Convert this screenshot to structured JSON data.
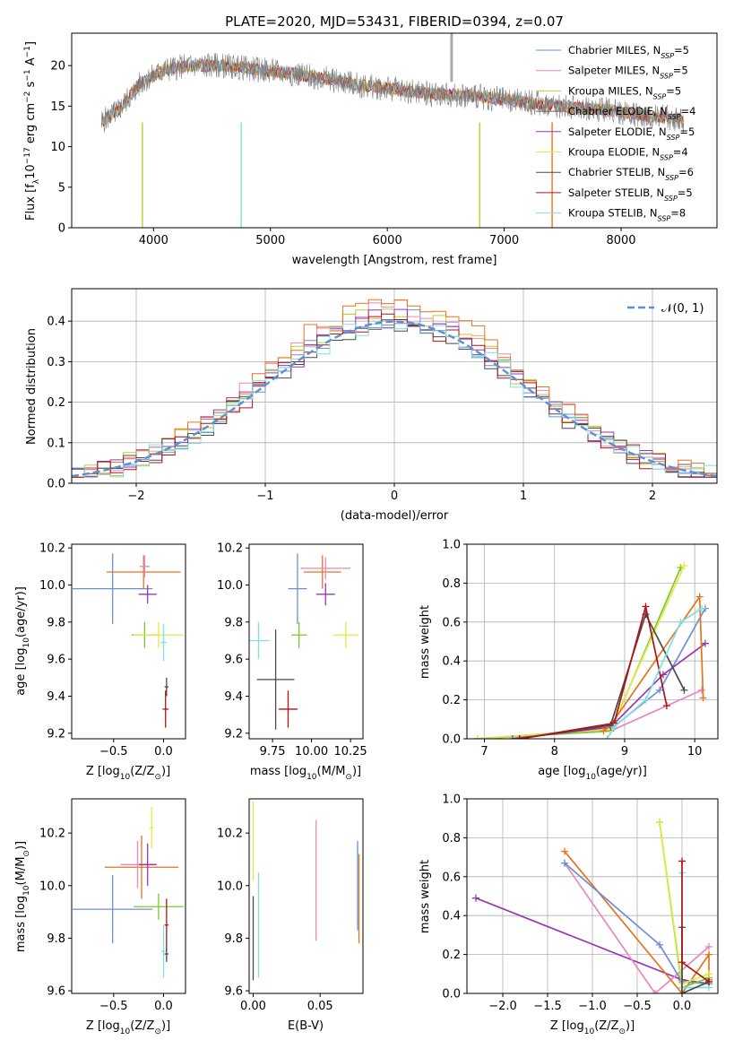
{
  "title": "PLATE=2020, MJD=53431, FIBERID=0394, z=0.07",
  "colors": {
    "Chabrier MILES": "#6b8fd6",
    "Salpeter MILES": "#e986c0",
    "Kroupa MILES": "#b9cf2e",
    "Chabrier ELODIE": "#606060",
    "Salpeter ELODIE": "#9a36b3",
    "Kroupa ELODIE": "#e3ea40",
    "Chabrier STELIB": "#4a4a4a",
    "Salpeter STELIB": "#b01414",
    "Kroupa STELIB": "#7fe0de",
    "orange": "#e6731d",
    "green": "#7bc82c",
    "gauss": "#5b8fd6",
    "data_gray": "#808080"
  },
  "chart_data": [
    {
      "id": "spectrum",
      "type": "line",
      "xlabel": "wavelength [Angstrom, rest frame]",
      "ylabel_main": "Flux [f",
      "ylabel_sub": "λ",
      "ylabel_rest": "10",
      "ylabel_exp1": "−17",
      "ylabel_tail": " erg cm",
      "ylabel_exp2": "−2",
      "ylabel_s": " s",
      "ylabel_exp3": "−1",
      "ylabel_end": " A",
      "ylabel_exp4": "−1",
      "ylabel_close": "]",
      "xlim": [
        3300,
        8820
      ],
      "ylim": [
        0,
        24
      ],
      "xticks": [
        4000,
        5000,
        6000,
        7000,
        8000
      ],
      "yticks": [
        0,
        5,
        10,
        15,
        20
      ],
      "continuum": [
        [
          3550,
          13
        ],
        [
          3700,
          14.5
        ],
        [
          3900,
          18
        ],
        [
          4100,
          19.5
        ],
        [
          4300,
          20
        ],
        [
          4600,
          20
        ],
        [
          4900,
          19.5
        ],
        [
          5200,
          19
        ],
        [
          5500,
          18.3
        ],
        [
          5800,
          17.5
        ],
        [
          6100,
          17
        ],
        [
          6400,
          16.5
        ],
        [
          6700,
          16.3
        ],
        [
          7000,
          15.8
        ],
        [
          7300,
          15.3
        ],
        [
          7600,
          14.8
        ],
        [
          7900,
          14.5
        ],
        [
          8200,
          13.8
        ],
        [
          8500,
          13.5
        ],
        [
          8550,
          13
        ]
      ],
      "legend": [
        {
          "label": "Chabrier MILES, N",
          "sub": "SSP",
          "val": "=5"
        },
        {
          "label": "Salpeter MILES, N",
          "sub": "SSP",
          "val": "=5"
        },
        {
          "label": "Kroupa MILES, N",
          "sub": "SSP",
          "val": "=5"
        },
        {
          "label": "Chabrier ELODIE, N",
          "sub": "SSP",
          "val": "=4"
        },
        {
          "label": "Salpeter ELODIE, N",
          "sub": "SSP",
          "val": "=5"
        },
        {
          "label": "Kroupa ELODIE, N",
          "sub": "SSP",
          "val": "=4"
        },
        {
          "label": "Chabrier STELIB, N",
          "sub": "SSP",
          "val": "=6"
        },
        {
          "label": "Salpeter STELIB, N",
          "sub": "SSP",
          "val": "=5"
        },
        {
          "label": "Kroupa STELIB, N",
          "sub": "SSP",
          "val": "=8"
        }
      ]
    },
    {
      "id": "residuals",
      "type": "step-histogram",
      "xlabel": "(data-model)/error",
      "ylabel": "Normed distribution",
      "xlim": [
        -2.5,
        2.5
      ],
      "ylim": [
        0,
        0.48
      ],
      "xticks": [
        -2,
        -1,
        0,
        1,
        2
      ],
      "xticklabels": [
        "−2",
        "−1",
        "0",
        "1",
        "2"
      ],
      "yticks": [
        0.0,
        0.1,
        0.2,
        0.3,
        0.4
      ],
      "yticklabels": [
        "0.0",
        "0.1",
        "0.2",
        "0.3",
        "0.4"
      ],
      "legend_label": "𝒩(0, 1)",
      "series_hist": [
        {
          "name": "Chabrier MILES",
          "peak": 0.41
        },
        {
          "name": "Salpeter MILES",
          "peak": 0.44
        },
        {
          "name": "Kroupa MILES",
          "peak": 0.42
        },
        {
          "name": "Salpeter ELODIE",
          "peak": 0.41
        },
        {
          "name": "orange",
          "peak": 0.455
        },
        {
          "name": "Chabrier STELIB",
          "peak": 0.4
        },
        {
          "name": "Salpeter STELIB",
          "peak": 0.4
        },
        {
          "name": "Kroupa STELIB",
          "peak": 0.4
        }
      ]
    },
    {
      "id": "age_vs_Z",
      "type": "errorbar",
      "xlabel": "Z [log",
      "xlabel_sub": "10",
      "xlabel_rest": "(Z/Z",
      "xlabel_sun": "⊙",
      "xlabel_end": ")]",
      "ylabel": "age  [log",
      "ylabel_sub": "10",
      "ylabel_rest": "(age/yr)]",
      "xlim": [
        -0.92,
        0.22
      ],
      "ylim": [
        9.17,
        10.22
      ],
      "xticks": [
        -0.5,
        0.0
      ],
      "xticklabels": [
        "−0.5",
        "0.0"
      ],
      "yticks": [
        9.2,
        9.4,
        9.6,
        9.8,
        10.0,
        10.2
      ],
      "yticklabels": [
        "9.2",
        "9.4",
        "9.6",
        "9.8",
        "10.0",
        "10.2"
      ],
      "points": [
        {
          "c": "Chabrier MILES",
          "x": -0.51,
          "y": 9.98,
          "xe": 0.4,
          "ye": 0.19
        },
        {
          "c": "orange",
          "x": -0.2,
          "y": 10.07,
          "xe": 0.37,
          "ye": 0.09
        },
        {
          "c": "Salpeter MILES",
          "x": -0.19,
          "y": 10.1,
          "xe": 0.05,
          "ye": 0.06
        },
        {
          "c": "Salpeter ELODIE",
          "x": -0.16,
          "y": 9.95,
          "xe": 0.09,
          "ye": 0.05
        },
        {
          "c": "green",
          "x": -0.19,
          "y": 9.73,
          "xe": 0.13,
          "ye": 0.07
        },
        {
          "c": "Kroupa ELODIE",
          "x": -0.05,
          "y": 9.73,
          "xe": 0.25,
          "ye": 0.07
        },
        {
          "c": "Kroupa STELIB",
          "x": 0.0,
          "y": 9.69,
          "xe": 0.03,
          "ye": 0.1
        },
        {
          "c": "Chabrier STELIB",
          "x": 0.03,
          "y": 9.45,
          "xe": 0.02,
          "ye": 0.05
        },
        {
          "c": "Salpeter STELIB",
          "x": 0.02,
          "y": 9.33,
          "xe": 0.03,
          "ye": 0.1
        }
      ]
    },
    {
      "id": "age_vs_mass",
      "type": "errorbar",
      "xlabel": "mass [log",
      "xlabel_sub": "10",
      "xlabel_rest": "(M/M",
      "xlabel_sun": "⊙",
      "xlabel_end": ")]",
      "xlim": [
        9.6,
        10.33
      ],
      "ylim": [
        9.17,
        10.22
      ],
      "xticks": [
        9.75,
        10.0,
        10.25
      ],
      "xticklabels": [
        "9.75",
        "10.00",
        "10.25"
      ],
      "yticks": [
        9.2,
        9.4,
        9.6,
        9.8,
        10.0,
        10.2
      ],
      "yticklabels": [
        "9.2",
        "9.4",
        "9.6",
        "9.8",
        "10.0",
        "10.2"
      ],
      "points": [
        {
          "c": "Chabrier MILES",
          "x": 9.91,
          "y": 9.98,
          "xe": 0.06,
          "ye": 0.19
        },
        {
          "c": "orange",
          "x": 10.07,
          "y": 10.07,
          "xe": 0.12,
          "ye": 0.09
        },
        {
          "c": "Salpeter MILES",
          "x": 10.09,
          "y": 10.09,
          "xe": 0.16,
          "ye": 0.06
        },
        {
          "c": "Salpeter ELODIE",
          "x": 10.09,
          "y": 9.95,
          "xe": 0.06,
          "ye": 0.06
        },
        {
          "c": "green",
          "x": 9.92,
          "y": 9.73,
          "xe": 0.05,
          "ye": 0.07
        },
        {
          "c": "Kroupa ELODIE",
          "x": 10.22,
          "y": 9.73,
          "xe": 0.08,
          "ye": 0.07
        },
        {
          "c": "Kroupa STELIB",
          "x": 9.66,
          "y": 9.7,
          "xe": 0.07,
          "ye": 0.1
        },
        {
          "c": "Chabrier STELIB",
          "x": 9.77,
          "y": 9.49,
          "xe": 0.12,
          "ye": 0.27
        },
        {
          "c": "Salpeter STELIB",
          "x": 9.85,
          "y": 9.33,
          "xe": 0.06,
          "ye": 0.1
        }
      ]
    },
    {
      "id": "weight_vs_age",
      "type": "line",
      "xlabel": "age  [log",
      "xlabel_sub": "10",
      "xlabel_rest": "(age/yr)]",
      "ylabel": "mass weight",
      "xlim": [
        6.75,
        10.33
      ],
      "ylim": [
        0,
        1.0
      ],
      "xticks": [
        7,
        8,
        9,
        10
      ],
      "xticklabels": [
        "7",
        "8",
        "9",
        "10"
      ],
      "yticks": [
        0.0,
        0.2,
        0.4,
        0.6,
        0.8,
        1.0
      ],
      "yticklabels": [
        "0.0",
        "0.2",
        "0.4",
        "0.6",
        "0.8",
        "1.0"
      ],
      "series": [
        {
          "c": "Chabrier MILES",
          "x": [
            6.9,
            8.8,
            9.5,
            10.15
          ],
          "y": [
            0.0,
            0.05,
            0.25,
            0.67
          ]
        },
        {
          "c": "Salpeter MILES",
          "x": [
            6.9,
            8.8,
            10.1
          ],
          "y": [
            0.0,
            0.04,
            0.25
          ]
        },
        {
          "c": "green",
          "x": [
            6.9,
            8.8,
            9.8
          ],
          "y": [
            0.0,
            0.04,
            0.88
          ]
        },
        {
          "c": "Kroupa ELODIE",
          "x": [
            6.9,
            8.8,
            9.85
          ],
          "y": [
            0.0,
            0.05,
            0.89
          ]
        },
        {
          "c": "Salpeter ELODIE",
          "x": [
            7.4,
            8.8,
            9.55,
            10.15
          ],
          "y": [
            0.0,
            0.06,
            0.33,
            0.49
          ]
        },
        {
          "c": "orange",
          "x": [
            8.7,
            8.8,
            10.07,
            10.12
          ],
          "y": [
            0.04,
            0.07,
            0.73,
            0.21
          ]
        },
        {
          "c": "Chabrier STELIB",
          "x": [
            7.5,
            8.8,
            9.3,
            9.85
          ],
          "y": [
            0.0,
            0.07,
            0.64,
            0.25
          ]
        },
        {
          "c": "Salpeter STELIB",
          "x": [
            7.5,
            8.85,
            9.3,
            9.6
          ],
          "y": [
            0.0,
            0.08,
            0.68,
            0.17
          ]
        },
        {
          "c": "Kroupa STELIB",
          "x": [
            8.75,
            8.85,
            9.3,
            9.8,
            10.1
          ],
          "y": [
            0.0,
            0.06,
            0.2,
            0.6,
            0.67
          ]
        }
      ]
    },
    {
      "id": "mass_vs_Z",
      "type": "errorbar",
      "xlabel": "Z [log",
      "xlabel_sub": "10",
      "xlabel_rest": "(Z/Z",
      "xlabel_sun": "⊙",
      "xlabel_end": ")]",
      "ylabel": "mass [log",
      "ylabel_sub": "10",
      "ylabel_rest": "(M/M",
      "ylabel_sun": "⊙",
      "ylabel_end": ")]",
      "xlim": [
        -0.92,
        0.22
      ],
      "ylim": [
        9.59,
        10.33
      ],
      "xticks": [
        -0.5,
        0.0
      ],
      "xticklabels": [
        "−0.5",
        "0.0"
      ],
      "yticks": [
        9.6,
        9.8,
        10.0,
        10.2
      ],
      "yticklabels": [
        "9.6",
        "9.8",
        "10.0",
        "10.2"
      ],
      "points": [
        {
          "c": "Chabrier MILES",
          "x": -0.51,
          "y": 9.91,
          "xe": 0.4,
          "ye": 0.13
        },
        {
          "c": "orange",
          "x": -0.22,
          "y": 10.07,
          "xe": 0.37,
          "ye": 0.12
        },
        {
          "c": "Salpeter MILES",
          "x": -0.26,
          "y": 10.08,
          "xe": 0.17,
          "ye": 0.09
        },
        {
          "c": "Salpeter ELODIE",
          "x": -0.16,
          "y": 10.08,
          "xe": 0.09,
          "ye": 0.08
        },
        {
          "c": "Kroupa ELODIE",
          "x": -0.12,
          "y": 10.22,
          "xe": 0.02,
          "ye": 0.08
        },
        {
          "c": "green",
          "x": -0.05,
          "y": 9.92,
          "xe": 0.25,
          "ye": 0.05
        },
        {
          "c": "Kroupa STELIB",
          "x": 0.0,
          "y": 9.75,
          "xe": 0.02,
          "ye": 0.1
        },
        {
          "c": "Salpeter STELIB",
          "x": 0.03,
          "y": 9.85,
          "xe": 0.02,
          "ye": 0.1
        },
        {
          "c": "Chabrier STELIB",
          "x": 0.03,
          "y": 9.74,
          "xe": 0.02,
          "ye": 0.03
        }
      ]
    },
    {
      "id": "mass_vs_ebv",
      "type": "errorbar",
      "xlabel": "E(B-V)",
      "xlim": [
        -0.003,
        0.082
      ],
      "ylim": [
        9.59,
        10.33
      ],
      "xticks": [
        0.0,
        0.05
      ],
      "xticklabels": [
        "0.00",
        "0.05"
      ],
      "yticks": [
        9.6,
        9.8,
        10.0,
        10.2
      ],
      "yticklabels": [
        "9.6",
        "9.8",
        "10.0",
        "10.2"
      ],
      "points": [
        {
          "c": "Kroupa ELODIE",
          "x": 0.0,
          "y": 10.17,
          "xe": 0.0,
          "ye": 0.15
        },
        {
          "c": "Chabrier STELIB",
          "x": 0.0,
          "y": 9.8,
          "xe": 0.0,
          "ye": 0.16
        },
        {
          "c": "Kroupa STELIB",
          "x": 0.004,
          "y": 9.85,
          "xe": 0.0,
          "ye": 0.2
        },
        {
          "c": "Salpeter MILES",
          "x": 0.047,
          "y": 10.02,
          "xe": 0.0,
          "ye": 0.23
        },
        {
          "c": "Chabrier MILES",
          "x": 0.078,
          "y": 10.0,
          "xe": 0.0,
          "ye": 0.17
        },
        {
          "c": "orange",
          "x": 0.079,
          "y": 9.95,
          "xe": 0.0,
          "ye": 0.17
        }
      ]
    },
    {
      "id": "weight_vs_Z",
      "type": "line",
      "xlabel": "Z [log",
      "xlabel_sub": "10",
      "xlabel_rest": "(Z/Z",
      "xlabel_sun": "⊙",
      "xlabel_end": ")]",
      "ylabel": "mass weight",
      "xlim": [
        -2.4,
        0.4
      ],
      "ylim": [
        0,
        1.0
      ],
      "xticks": [
        -2.0,
        -1.5,
        -1.0,
        -0.5,
        0.0
      ],
      "xticklabels": [
        "−2.0",
        "−1.5",
        "−1.0",
        "−0.5",
        "0.0"
      ],
      "yticks": [
        0.0,
        0.2,
        0.4,
        0.6,
        0.8,
        1.0
      ],
      "yticklabels": [
        "0.0",
        "0.2",
        "0.4",
        "0.6",
        "0.8",
        "1.0"
      ],
      "series": [
        {
          "c": "Salpeter ELODIE",
          "x": [
            -2.3,
            0.0,
            0.3
          ],
          "y": [
            0.49,
            0.07,
            0.05
          ]
        },
        {
          "c": "Salpeter MILES",
          "x": [
            -1.31,
            -0.3,
            0.3
          ],
          "y": [
            0.67,
            0.0,
            0.24
          ]
        },
        {
          "c": "orange",
          "x": [
            -1.31,
            0.0,
            0.3,
            0.3
          ],
          "y": [
            0.73,
            0.0,
            0.2,
            0.07
          ]
        },
        {
          "c": "Chabrier MILES",
          "x": [
            -1.31,
            -0.25,
            0.0,
            0.3
          ],
          "y": [
            0.67,
            0.25,
            0.06,
            0.05
          ]
        },
        {
          "c": "green",
          "x": [
            -0.25,
            0.0,
            0.3
          ],
          "y": [
            0.88,
            0.03,
            0.08
          ]
        },
        {
          "c": "Kroupa ELODIE",
          "x": [
            -0.25,
            0.0,
            0.3
          ],
          "y": [
            0.88,
            0.05,
            0.1
          ]
        },
        {
          "c": "Kroupa STELIB",
          "x": [
            0.0,
            0.0,
            0.3
          ],
          "y": [
            0.62,
            0.03,
            0.03
          ]
        },
        {
          "c": "Chabrier STELIB",
          "x": [
            0.0,
            0.0,
            0.3
          ],
          "y": [
            0.34,
            0.0,
            0.06
          ]
        },
        {
          "c": "Salpeter STELIB",
          "x": [
            0.0,
            0.0,
            0.3
          ],
          "y": [
            0.68,
            0.16,
            0.06
          ]
        }
      ]
    }
  ]
}
